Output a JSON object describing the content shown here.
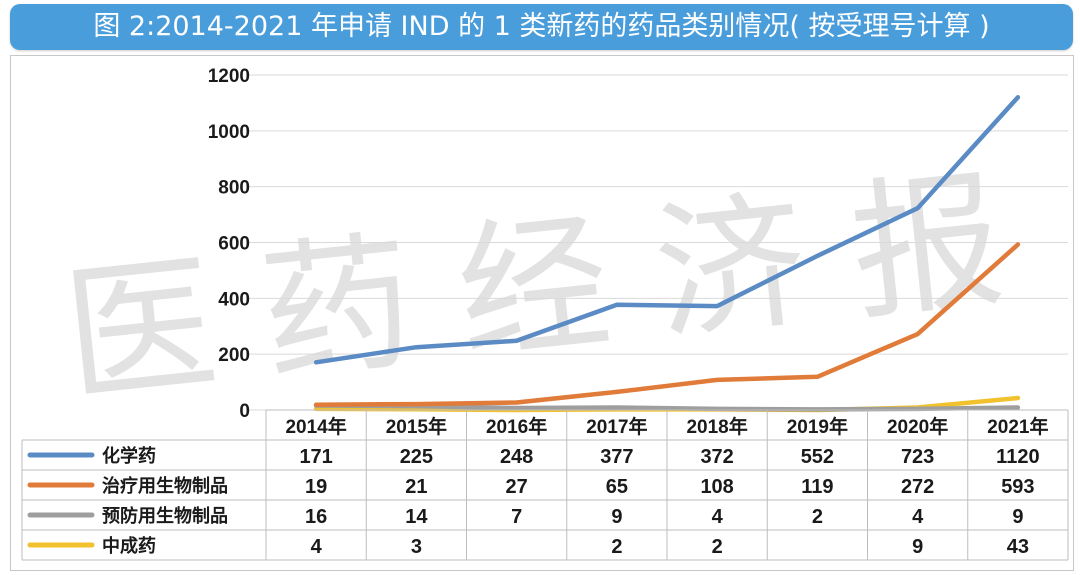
{
  "title": "图 2:2014-2021 年申请 IND 的 1 类新药的药品类别情况( 按受理号计算 )",
  "watermark": "医 药 经 济 报",
  "chart_data": {
    "type": "line",
    "categories": [
      "2014年",
      "2015年",
      "2016年",
      "2017年",
      "2018年",
      "2019年",
      "2020年",
      "2021年"
    ],
    "ylim": [
      0,
      1200
    ],
    "yticks": [
      0,
      200,
      400,
      600,
      800,
      1000,
      1200
    ],
    "grid": true,
    "legend_placement": "data-table-left",
    "series": [
      {
        "name": "化学药",
        "color": "#5b8bc4",
        "values": [
          171,
          225,
          248,
          377,
          372,
          552,
          723,
          1120
        ],
        "labels": [
          "171",
          "225",
          "248",
          "377",
          "372",
          "552",
          "723",
          "1120"
        ]
      },
      {
        "name": "治疗用生物制品",
        "color": "#e07b39",
        "values": [
          19,
          21,
          27,
          65,
          108,
          119,
          272,
          593
        ],
        "labels": [
          "19",
          "21",
          "27",
          "65",
          "108",
          "119",
          "272",
          "593"
        ]
      },
      {
        "name": "预防用生物制品",
        "color": "#9e9e9e",
        "values": [
          16,
          14,
          7,
          9,
          4,
          2,
          4,
          9
        ],
        "labels": [
          "16",
          "14",
          "7",
          "9",
          "4",
          "2",
          "4",
          "9"
        ]
      },
      {
        "name": "中成药",
        "color": "#f2c12e",
        "values": [
          4,
          3,
          0,
          2,
          2,
          0,
          9,
          43
        ],
        "labels": [
          "4",
          "3",
          "",
          "2",
          "2",
          "",
          "9",
          "43"
        ]
      }
    ]
  }
}
